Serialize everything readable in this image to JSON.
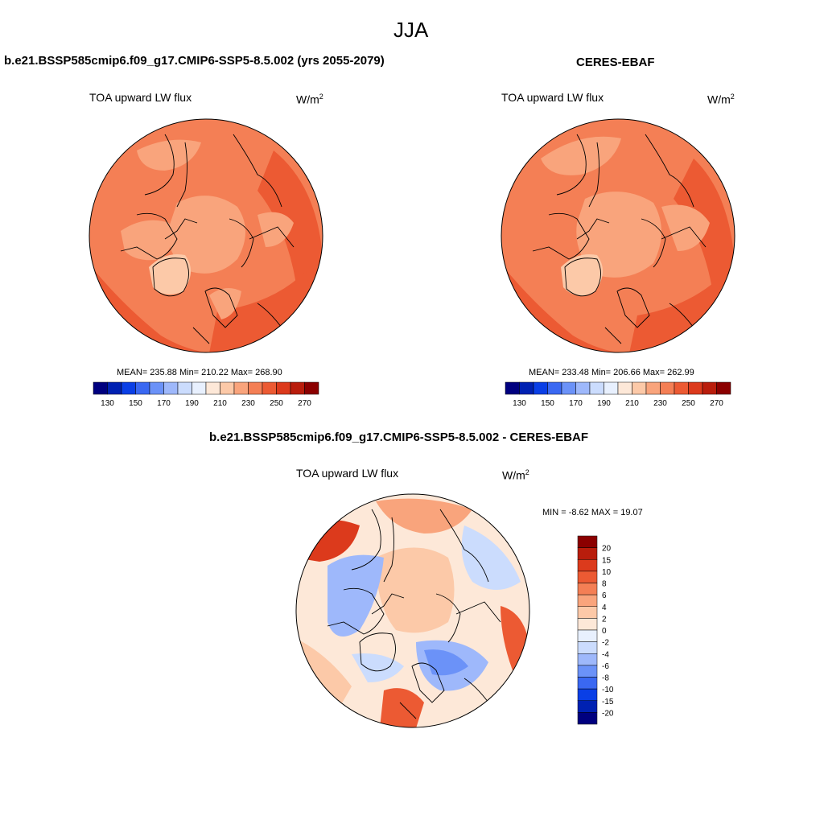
{
  "figure": {
    "season": "JJA"
  },
  "colors": {
    "scale": [
      "#00007f",
      "#0021b2",
      "#0a3fe6",
      "#3a68f2",
      "#6b92f8",
      "#9eb8fb",
      "#cbdcfd",
      "#e8f0fe",
      "#fde8d8",
      "#fcc9a8",
      "#f9a47c",
      "#f47f55",
      "#ec5a33",
      "#dc3a1c",
      "#b91d0c",
      "#8b0000"
    ]
  },
  "panels": [
    {
      "id": "model",
      "title": "b.e21.BSSP585cmip6.f09_g17.CMIP6-SSP5-8.5.002 (yrs 2055-2079)",
      "variable": "TOA upward LW flux",
      "units_base": "W/m",
      "units_exp": "2",
      "stats": "MEAN= 235.88  Min= 210.22  Max= 268.90",
      "mean": 235.88,
      "min": 210.22,
      "max": 268.9,
      "colorbar_labels": [
        "130",
        "150",
        "170",
        "190",
        "210",
        "230",
        "250",
        "270"
      ]
    },
    {
      "id": "obs",
      "title": "CERES-EBAF",
      "variable": "TOA upward LW flux",
      "units_base": "W/m",
      "units_exp": "2",
      "stats": "MEAN= 233.48  Min= 206.66  Max= 262.99",
      "mean": 233.48,
      "min": 206.66,
      "max": 262.99,
      "colorbar_labels": [
        "130",
        "150",
        "170",
        "190",
        "210",
        "230",
        "250",
        "270"
      ]
    },
    {
      "id": "diff",
      "title": "b.e21.BSSP585cmip6.f09_g17.CMIP6-SSP5-8.5.002 - CERES-EBAF",
      "variable": "TOA upward LW flux",
      "units_base": "W/m",
      "units_exp": "2",
      "stats": "MIN =  -8.62 MAX =  19.07",
      "min": -8.62,
      "max": 19.07,
      "colorbar_labels": [
        "20",
        "15",
        "10",
        "8",
        "6",
        "4",
        "2",
        "0",
        "-2",
        "-4",
        "-6",
        "-8",
        "-10",
        "-15",
        "-20"
      ]
    }
  ]
}
